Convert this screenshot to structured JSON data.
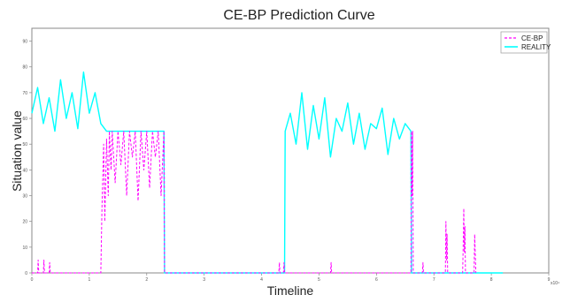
{
  "chart_data": {
    "type": "line",
    "title": "CE-BP Prediction Curve",
    "xlabel": "Timeline",
    "ylabel": "Situation value",
    "x_exponent_label": "x10⁴",
    "xlim": [
      0,
      9
    ],
    "ylim": [
      0,
      95
    ],
    "xticks": [
      0,
      1,
      2,
      3,
      4,
      5,
      6,
      7,
      8,
      9
    ],
    "yticks": [
      0,
      10,
      20,
      30,
      40,
      50,
      60,
      70,
      80,
      90
    ],
    "grid": false,
    "legend": "top-right",
    "series": [
      {
        "name": "CE-BP",
        "color": "#ff00ff",
        "style": "dashed",
        "x": [
          0,
          0.1,
          0.11,
          0.12,
          0.13,
          0.2,
          0.21,
          0.22,
          0.23,
          0.3,
          0.31,
          0.32,
          0.33,
          1.2,
          1.22,
          1.25,
          1.27,
          1.3,
          1.33,
          1.35,
          1.38,
          1.4,
          1.45,
          1.5,
          1.55,
          1.6,
          1.65,
          1.7,
          1.75,
          1.8,
          1.85,
          1.9,
          1.95,
          2.0,
          2.05,
          2.1,
          2.15,
          2.2,
          2.25,
          2.3,
          2.31,
          4.3,
          4.31,
          4.32,
          4.33,
          4.38,
          4.39,
          4.4,
          4.41,
          5.2,
          5.21,
          5.22,
          5.23,
          6.6,
          6.61,
          6.62,
          6.63,
          6.64,
          6.8,
          6.81,
          6.82,
          6.83,
          7.2,
          7.21,
          7.22,
          7.23,
          7.24,
          7.5,
          7.51,
          7.52,
          7.53,
          7.54,
          7.55,
          7.7,
          7.71,
          7.72,
          7.73
        ],
        "y": [
          0,
          0,
          5,
          0,
          0,
          0,
          5,
          0,
          0,
          0,
          4,
          0,
          0,
          0,
          25,
          50,
          20,
          52,
          30,
          55,
          40,
          55,
          35,
          55,
          42,
          55,
          30,
          55,
          45,
          55,
          28,
          55,
          40,
          55,
          33,
          55,
          45,
          55,
          30,
          55,
          0,
          0,
          4,
          0,
          0,
          0,
          4,
          0,
          0,
          0,
          4,
          0,
          0,
          0,
          55,
          30,
          55,
          0,
          0,
          4,
          0,
          0,
          0,
          20,
          5,
          15,
          0,
          0,
          10,
          25,
          8,
          18,
          0,
          0,
          15,
          8,
          0
        ]
      },
      {
        "name": "REALITY",
        "color": "#00ffff",
        "style": "solid",
        "x": [
          0,
          0.1,
          0.2,
          0.3,
          0.4,
          0.5,
          0.6,
          0.7,
          0.8,
          0.9,
          1.0,
          1.1,
          1.2,
          1.3,
          1.31,
          2.3,
          2.31,
          4.4,
          4.41,
          4.5,
          4.6,
          4.7,
          4.8,
          4.9,
          5.0,
          5.1,
          5.2,
          5.3,
          5.4,
          5.5,
          5.6,
          5.7,
          5.8,
          5.9,
          6.0,
          6.1,
          6.2,
          6.3,
          6.4,
          6.5,
          6.6,
          6.61,
          8.2
        ],
        "y": [
          62,
          72,
          58,
          68,
          55,
          75,
          60,
          70,
          56,
          78,
          62,
          70,
          58,
          55,
          55,
          55,
          0,
          0,
          55,
          62,
          50,
          70,
          48,
          65,
          52,
          68,
          45,
          60,
          55,
          66,
          50,
          62,
          48,
          58,
          56,
          64,
          46,
          60,
          52,
          58,
          55,
          0,
          0
        ]
      }
    ]
  }
}
